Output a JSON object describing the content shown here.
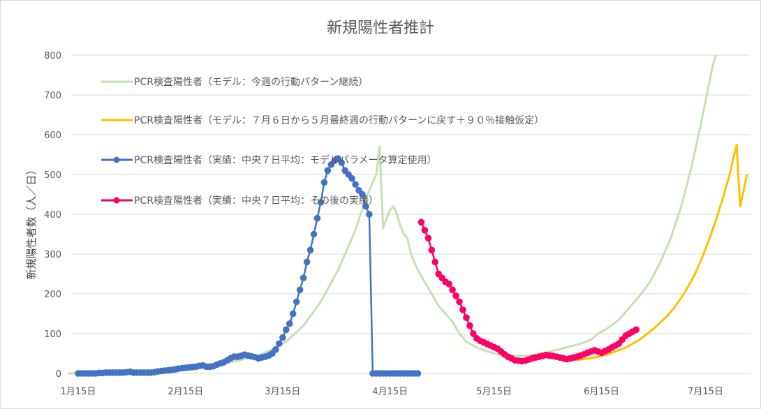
{
  "chart_data": {
    "type": "line",
    "title": "新規陽性者推計",
    "ylabel": "新規陽性者数（人／日）",
    "xlabel": "",
    "ylim": [
      0,
      800
    ],
    "xlim_days": [
      -2,
      194
    ],
    "grid": true,
    "legend_position": "top-left (inside plot)",
    "y_ticks": [
      0,
      100,
      200,
      300,
      400,
      500,
      600,
      700,
      800
    ],
    "x_ticks": [
      {
        "label": "1月15日",
        "day": 0
      },
      {
        "label": "2月15日",
        "day": 31
      },
      {
        "label": "3月15日",
        "day": 59
      },
      {
        "label": "4月15日",
        "day": 90
      },
      {
        "label": "5月15日",
        "day": 120
      },
      {
        "label": "6月15日",
        "day": 151
      },
      {
        "label": "7月15日",
        "day": 181
      }
    ],
    "series": [
      {
        "name": "PCR検査陽性者（モデル：今週の行動パターン継続）",
        "color": "#c5e0b4",
        "style": "line",
        "x": [
          -3,
          15,
          25,
          35,
          45,
          52,
          56,
          60,
          65,
          70,
          75,
          80,
          83,
          85,
          86,
          87,
          88,
          89,
          90,
          91,
          92,
          93,
          94,
          95,
          96,
          98,
          100,
          102,
          104,
          106,
          108,
          110,
          112,
          115,
          118,
          121,
          124,
          127,
          130,
          133,
          136,
          140,
          142,
          145,
          148,
          150,
          153,
          156,
          158,
          160,
          162,
          165,
          168,
          171,
          174,
          177,
          180,
          183,
          184
        ],
        "y": [
          0,
          2,
          8,
          15,
          30,
          45,
          60,
          80,
          120,
          180,
          260,
          360,
          440,
          480,
          500,
          570,
          365,
          390,
          410,
          420,
          400,
          370,
          350,
          340,
          300,
          260,
          230,
          200,
          170,
          150,
          130,
          100,
          80,
          65,
          55,
          48,
          45,
          44,
          45,
          48,
          55,
          63,
          68,
          75,
          85,
          100,
          115,
          135,
          155,
          175,
          195,
          230,
          280,
          340,
          420,
          520,
          640,
          770,
          800
        ]
      },
      {
        "name": "PCR検査陽性者（モデル：７月６日から５月最終週の行動パターンに戻す＋９０％接触仮定）",
        "color": "#ffc000",
        "style": "line",
        "x": [
          140,
          142,
          145,
          148,
          150,
          152,
          154,
          156,
          158,
          160,
          162,
          164,
          166,
          168,
          170,
          172,
          174,
          176,
          178,
          180,
          182,
          184,
          186,
          188,
          189,
          190,
          191,
          192,
          193
        ],
        "y": [
          30,
          32,
          35,
          38,
          42,
          46,
          52,
          58,
          65,
          75,
          85,
          98,
          112,
          128,
          145,
          165,
          190,
          218,
          250,
          290,
          335,
          385,
          440,
          500,
          540,
          575,
          420,
          460,
          500
        ]
      },
      {
        "name": "PCR検査陽性者（実績：中央７日平均：モデルパラメータ算定使用）",
        "color": "#4472c4",
        "style": "line+markers",
        "x": [
          0,
          1,
          2,
          3,
          4,
          5,
          6,
          7,
          8,
          9,
          10,
          11,
          12,
          13,
          14,
          15,
          16,
          17,
          18,
          19,
          20,
          21,
          22,
          23,
          24,
          25,
          26,
          27,
          28,
          29,
          30,
          31,
          32,
          33,
          34,
          35,
          36,
          37,
          38,
          39,
          40,
          41,
          42,
          43,
          44,
          45,
          46,
          47,
          48,
          49,
          50,
          51,
          52,
          53,
          54,
          55,
          56,
          57,
          58,
          59,
          60,
          61,
          62,
          63,
          64,
          65,
          66,
          67,
          68,
          69,
          70,
          71,
          72,
          73,
          74,
          75,
          76,
          77,
          78,
          79,
          80,
          81,
          82,
          83,
          84,
          85,
          86,
          87,
          88,
          89,
          90,
          91,
          92,
          93,
          94,
          95,
          96,
          97,
          98
        ],
        "y": [
          0,
          0,
          0,
          0,
          0,
          0,
          1,
          1,
          2,
          2,
          2,
          2,
          2,
          2,
          3,
          4,
          2,
          2,
          2,
          2,
          2,
          2,
          3,
          5,
          6,
          7,
          8,
          9,
          10,
          12,
          13,
          14,
          15,
          16,
          17,
          19,
          20,
          17,
          17,
          18,
          22,
          25,
          28,
          33,
          38,
          42,
          42,
          44,
          47,
          45,
          43,
          41,
          38,
          40,
          42,
          45,
          50,
          60,
          75,
          90,
          110,
          125,
          150,
          180,
          210,
          240,
          280,
          310,
          350,
          390,
          430,
          480,
          510,
          525,
          535,
          540,
          530,
          510,
          500,
          490,
          475,
          460,
          450,
          420,
          400,
          0,
          0,
          0,
          0,
          0,
          0,
          0,
          0,
          0,
          0,
          0,
          0,
          0,
          0
        ]
      },
      {
        "name": "PCR検査陽性者（実績：中央７日平均：その後の実績）",
        "color": "#ff0066",
        "style": "line+markers",
        "x": [
          99,
          100,
          101,
          102,
          103,
          104,
          105,
          106,
          107,
          108,
          109,
          110,
          111,
          112,
          113,
          114,
          115,
          116,
          117,
          118,
          119,
          120,
          121,
          122,
          123,
          124,
          125,
          126,
          127,
          128,
          129,
          130,
          131,
          132,
          133,
          134,
          135,
          136,
          137,
          138,
          139,
          140,
          141,
          142,
          143,
          144,
          145,
          146,
          147,
          148,
          149,
          150,
          151,
          152,
          153,
          154,
          155,
          156,
          157,
          158,
          159,
          160,
          161
        ],
        "y": [
          380,
          360,
          340,
          310,
          280,
          250,
          240,
          230,
          225,
          210,
          195,
          180,
          160,
          140,
          120,
          100,
          88,
          82,
          78,
          74,
          70,
          66,
          62,
          55,
          48,
          42,
          38,
          33,
          32,
          31,
          32,
          35,
          38,
          40,
          42,
          44,
          46,
          45,
          44,
          42,
          40,
          38,
          36,
          38,
          40,
          42,
          45,
          48,
          52,
          55,
          58,
          55,
          52,
          56,
          60,
          65,
          70,
          75,
          85,
          95,
          100,
          105,
          110
        ]
      }
    ]
  },
  "colors": {
    "green": "#c5e0b4",
    "orange": "#ffc000",
    "blue": "#4472c4",
    "pink": "#ff0066",
    "grid": "#d9d9d9",
    "text": "#595959"
  }
}
